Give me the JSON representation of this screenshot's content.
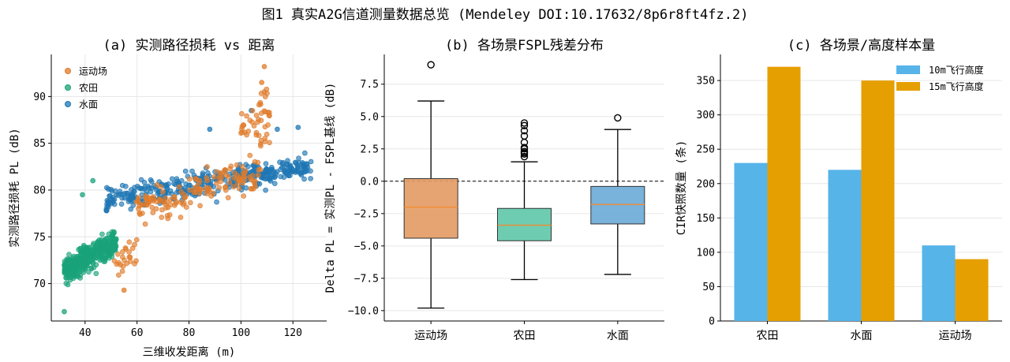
{
  "figure_title": "图1 真实A2G信道测量数据总览 (Mendeley DOI:10.17632/8p6r8ft4fz.2)",
  "chart_data": [
    {
      "type": "scatter",
      "title": "(a) 实测路径损耗 vs 距离",
      "xlabel": "三维收发距离 (m)",
      "ylabel": "实测路径损耗 PL (dB)",
      "xlim": [
        27,
        133
      ],
      "ylim": [
        66,
        94.5
      ],
      "xticks": [
        40,
        60,
        80,
        100,
        120
      ],
      "yticks": [
        70,
        75,
        80,
        85,
        90
      ],
      "grid": true,
      "legend_position": "upper-left",
      "series": [
        {
          "name": "运动场",
          "color": "#e07b2a",
          "clusters": [
            {
              "x_range": [
                48,
                60
              ],
              "y_center": 74,
              "y_spread": 3.5,
              "count": 25
            },
            {
              "x_range": [
                58,
                108
              ],
              "y_center": 79,
              "y_spread": 4,
              "count": 150
            },
            {
              "x_range": [
                100,
                111
              ],
              "y_center": 84.5,
              "y_spread": 5,
              "count": 45
            }
          ],
          "highlights": [
            {
              "x": 109,
              "y": 93.2
            },
            {
              "x": 108,
              "y": 91.5
            },
            {
              "x": 109,
              "y": 90.5
            },
            {
              "x": 55,
              "y": 69.3
            }
          ]
        },
        {
          "name": "农田",
          "color": "#1aa37a",
          "clusters": [
            {
              "x_range": [
                32,
                52
              ],
              "y_center": 73,
              "y_spread": 3,
              "count": 400
            }
          ],
          "highlights": [
            {
              "x": 32,
              "y": 67.0
            },
            {
              "x": 39,
              "y": 79.5
            },
            {
              "x": 43,
              "y": 81.0
            }
          ]
        },
        {
          "name": "水面",
          "color": "#1f77b4",
          "clusters": [
            {
              "x_range": [
                48,
                127
              ],
              "y_center": 80.5,
              "y_spread": 3,
              "count": 380
            }
          ],
          "highlights": [
            {
              "x": 88,
              "y": 86.5
            },
            {
              "x": 114,
              "y": 86.5
            },
            {
              "x": 122,
              "y": 86.7
            },
            {
              "x": 104,
              "y": 88.5
            }
          ]
        }
      ]
    },
    {
      "type": "box",
      "title": "(b) 各场景FSPL残差分布",
      "xlabel": "",
      "ylabel": "Delta PL = 实测PL - FSPL基线 (dB)",
      "ylim": [
        -10.8,
        9.8
      ],
      "yticks": [
        -10.0,
        -7.5,
        -5.0,
        -2.5,
        0.0,
        2.5,
        5.0,
        7.5
      ],
      "ytick_labels": [
        "−10.0",
        "−7.5",
        "−5.0",
        "−2.5",
        "0.0",
        "2.5",
        "5.0",
        "7.5"
      ],
      "reference_line": 0,
      "grid": true,
      "categories": [
        "运动场",
        "农田",
        "水面"
      ],
      "colors": [
        "#e39a63",
        "#5ec7a8",
        "#6aaad6"
      ],
      "boxes": [
        {
          "whisker_low": -9.8,
          "q1": -4.4,
          "median": -2.0,
          "q3": 0.2,
          "whisker_high": 6.2,
          "outliers": [
            9.0
          ]
        },
        {
          "whisker_low": -7.6,
          "q1": -4.6,
          "median": -3.4,
          "q3": -2.1,
          "whisker_high": 1.5,
          "outliers": [
            1.9,
            2.1,
            2.2,
            2.3,
            2.5,
            2.6,
            3.0,
            3.5,
            3.9,
            4.3,
            4.5
          ]
        },
        {
          "whisker_low": -7.2,
          "q1": -3.3,
          "median": -1.8,
          "q3": -0.4,
          "whisker_high": 4.0,
          "outliers": [
            4.9
          ]
        }
      ]
    },
    {
      "type": "bar",
      "title": "(c) 各场景/高度样本量",
      "xlabel": "",
      "ylabel": "CIR快照数量 (条)",
      "ylim": [
        0,
        388
      ],
      "yticks": [
        0,
        50,
        100,
        150,
        200,
        250,
        300,
        350
      ],
      "grid": true,
      "legend_position": "upper-right",
      "categories": [
        "农田",
        "水面",
        "运动场"
      ],
      "series": [
        {
          "name": "10m飞行高度",
          "color": "#56b4e9",
          "values": [
            230,
            220,
            110
          ]
        },
        {
          "name": "15m飞行高度",
          "color": "#e69f00",
          "values": [
            370,
            350,
            90
          ]
        }
      ]
    }
  ]
}
